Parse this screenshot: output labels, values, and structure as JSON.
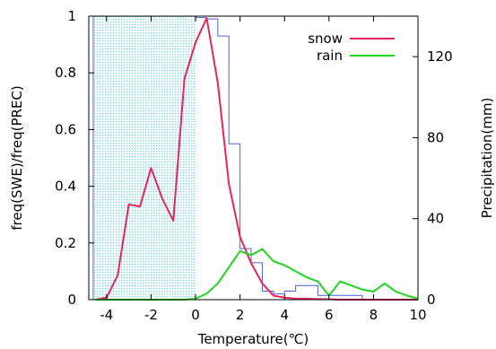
{
  "chart_data": {
    "type": "line",
    "xlabel": "Temperature(℃)",
    "ylabel": "freq(SWE)/freq(PREC)",
    "y2label": "Precipitation(mm)",
    "xlim": [
      -4.8,
      10
    ],
    "ylim": [
      0,
      1
    ],
    "y2lim": [
      0,
      140
    ],
    "xticks": [
      -4,
      -2,
      0,
      2,
      4,
      6,
      8,
      10
    ],
    "yticks": [
      0,
      0.2,
      0.4,
      0.6,
      0.8,
      1
    ],
    "y2ticks": [
      0,
      40,
      80,
      120
    ],
    "legend_position": "top-right",
    "colors": {
      "snow": "#e8245e",
      "rain": "#1fd61f",
      "ratio_step": "#4a63d6",
      "ratio_fill": "#9fe8ec"
    },
    "series": [
      {
        "name": "snow",
        "axis": "y2",
        "x": [
          -4.5,
          -4,
          -3.5,
          -3,
          -2.5,
          -2,
          -1.5,
          -1,
          -0.5,
          0,
          0.5,
          1,
          1.5,
          2,
          2.5,
          3,
          3.5,
          4,
          4.5,
          5,
          5.5,
          6,
          6.5,
          7,
          7.5,
          8,
          8.5,
          9,
          9.5,
          10
        ],
        "values": [
          0,
          1,
          12,
          47,
          46,
          65,
          50,
          39,
          109,
          127,
          139,
          107,
          57,
          31,
          18,
          8,
          2,
          1,
          0.5,
          0.5,
          0.3,
          0.2,
          0,
          0,
          0,
          0,
          0,
          0,
          0,
          0
        ]
      },
      {
        "name": "rain",
        "axis": "y2",
        "x": [
          -4.5,
          -4,
          -3.5,
          -3,
          -2.5,
          -2,
          -1.5,
          -1,
          -0.5,
          0,
          0.5,
          1,
          1.5,
          2,
          2.5,
          3,
          3.5,
          4,
          4.5,
          5,
          5.5,
          6,
          6.5,
          7,
          7.5,
          8,
          8.5,
          9,
          9.5,
          10
        ],
        "values": [
          0,
          0,
          0,
          0,
          0,
          0,
          0,
          0,
          0,
          0.5,
          3,
          8,
          16,
          24,
          22,
          25,
          19,
          17,
          14,
          11,
          9,
          2,
          9,
          7,
          5,
          4,
          8,
          4,
          2,
          0.5
        ]
      },
      {
        "name": "",
        "type": "step",
        "axis": "y",
        "x": [
          -4.6,
          -4.5,
          -4,
          -3.5,
          -3,
          -2.5,
          -2,
          -1.5,
          -1,
          -0.5,
          0,
          0.5,
          1,
          1.5,
          2,
          2.5,
          3,
          3.5,
          4,
          4.5,
          5,
          5.5,
          6,
          6.5,
          7,
          7.5
        ],
        "values": [
          1,
          1,
          1,
          1,
          1,
          1,
          1,
          1,
          1,
          1,
          0.995,
          0.99,
          0.93,
          0.55,
          0.18,
          0.13,
          0.03,
          0.02,
          0.03,
          0.05,
          0.05,
          0.015,
          0.015,
          0.015,
          0.015,
          0
        ]
      }
    ]
  }
}
